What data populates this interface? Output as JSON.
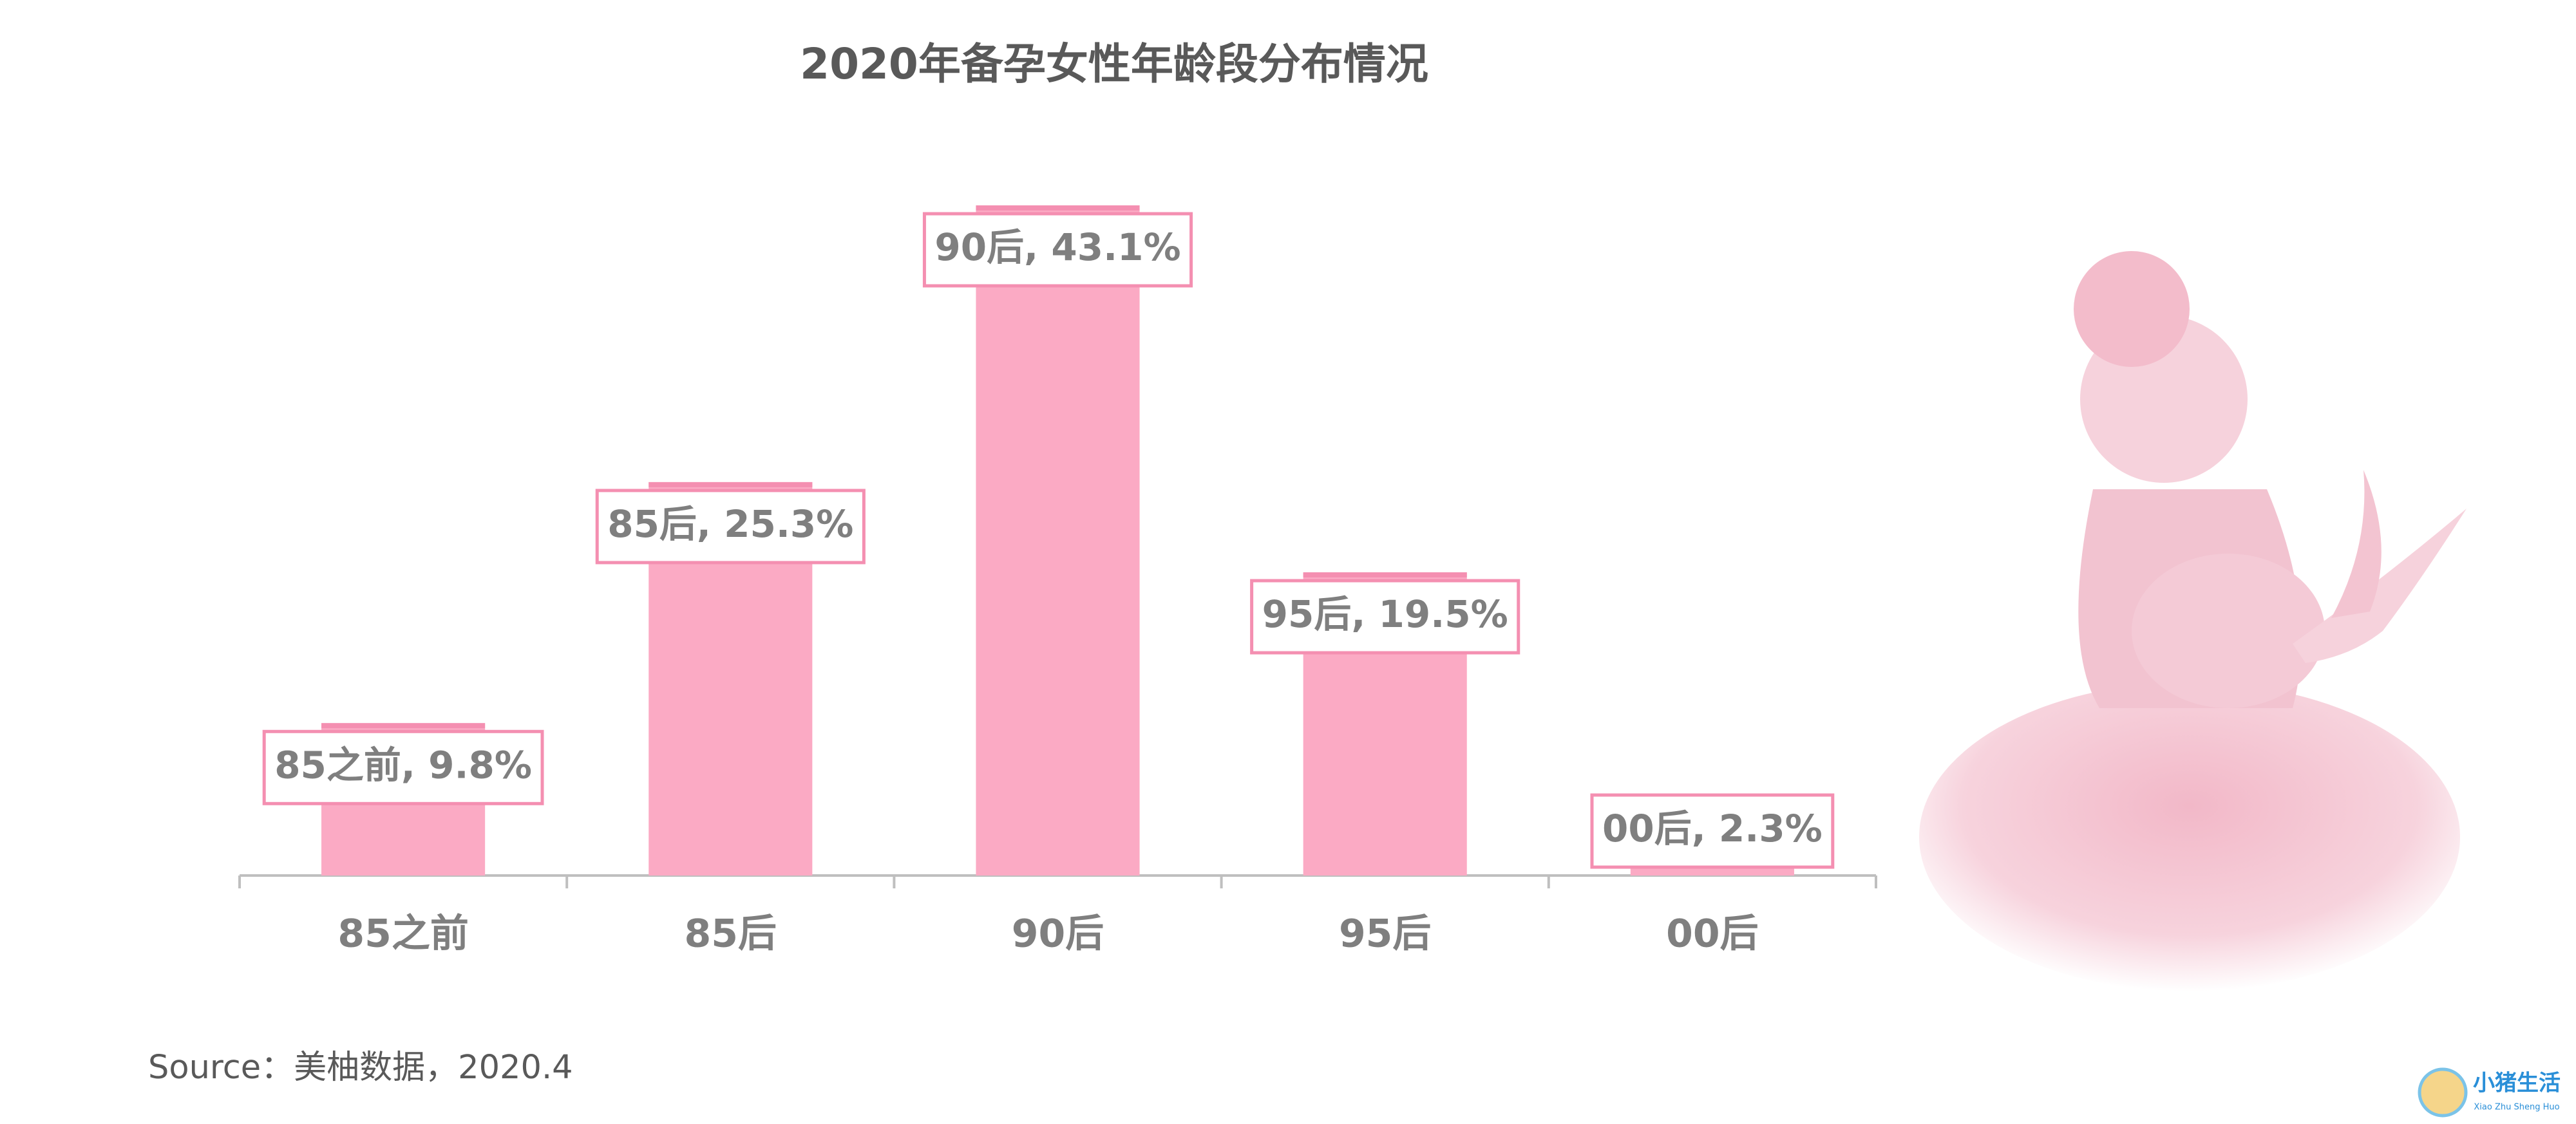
{
  "chart_data": {
    "type": "bar",
    "title": "2020年备孕女性年龄段分布情况",
    "categories": [
      "85之前",
      "85后",
      "90后",
      "95后",
      "00后"
    ],
    "values": [
      9.8,
      25.3,
      43.1,
      19.5,
      2.3
    ],
    "value_labels": [
      "85之前, 9.8%",
      "85后, 25.3%",
      "90后, 43.1%",
      "95后, 19.5%",
      "00后, 2.3%"
    ],
    "color": "#fbaac4"
  },
  "source": "Source：美柚数据，2020.4",
  "watermark": {
    "title": "小猪生活",
    "subtitle": "Xiao Zhu Sheng Huo"
  }
}
